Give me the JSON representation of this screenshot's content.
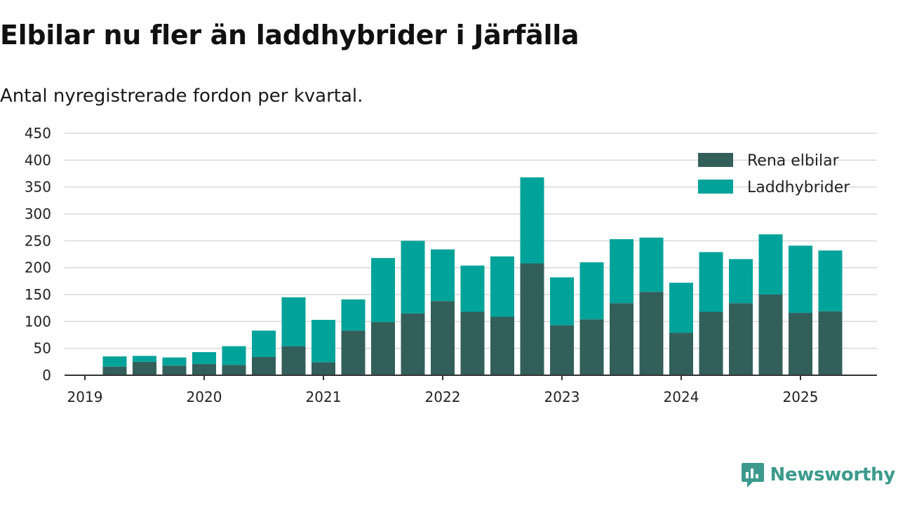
{
  "header": {
    "title": "Elbilar nu fler än laddhybrider i Järfälla",
    "subtitle": "Antal nyregistrerade fordon per kvartal."
  },
  "brand": {
    "name": "Newsworthy",
    "icon": "newsworthy-logo-icon",
    "color": "#3c9a8c"
  },
  "chart_data": {
    "type": "bar",
    "stacked": true,
    "categories": [
      "2019-Q1",
      "2019-Q2",
      "2019-Q3",
      "2019-Q4",
      "2020-Q1",
      "2020-Q2",
      "2020-Q3",
      "2020-Q4",
      "2021-Q1",
      "2021-Q2",
      "2021-Q3",
      "2021-Q4",
      "2022-Q1",
      "2022-Q2",
      "2022-Q3",
      "2022-Q4",
      "2023-Q1",
      "2023-Q2",
      "2023-Q3",
      "2023-Q4",
      "2024-Q1",
      "2024-Q2",
      "2024-Q3",
      "2024-Q4",
      "2025-Q1",
      "2025-Q2"
    ],
    "series": [
      {
        "name": "Rena elbilar",
        "color": "#335f5a",
        "values": [
          0,
          16,
          25,
          18,
          21,
          19,
          34,
          54,
          24,
          83,
          99,
          115,
          138,
          118,
          109,
          208,
          93,
          104,
          134,
          155,
          79,
          118,
          134,
          150,
          116,
          119
        ]
      },
      {
        "name": "Laddhybrider",
        "color": "#00a39a",
        "values": [
          0,
          19,
          11,
          15,
          22,
          35,
          49,
          91,
          79,
          58,
          119,
          135,
          96,
          86,
          112,
          160,
          89,
          106,
          119,
          101,
          93,
          111,
          82,
          112,
          125,
          113
        ]
      }
    ],
    "x_tick_labels": [
      "2019",
      "2020",
      "2021",
      "2022",
      "2023",
      "2024",
      "2025"
    ],
    "y_ticks": [
      0,
      50,
      100,
      150,
      200,
      250,
      300,
      350,
      400,
      450
    ],
    "ylim": [
      0,
      450
    ],
    "xlabel": "",
    "ylabel": "",
    "grid": true,
    "legend_position": "top-right"
  }
}
